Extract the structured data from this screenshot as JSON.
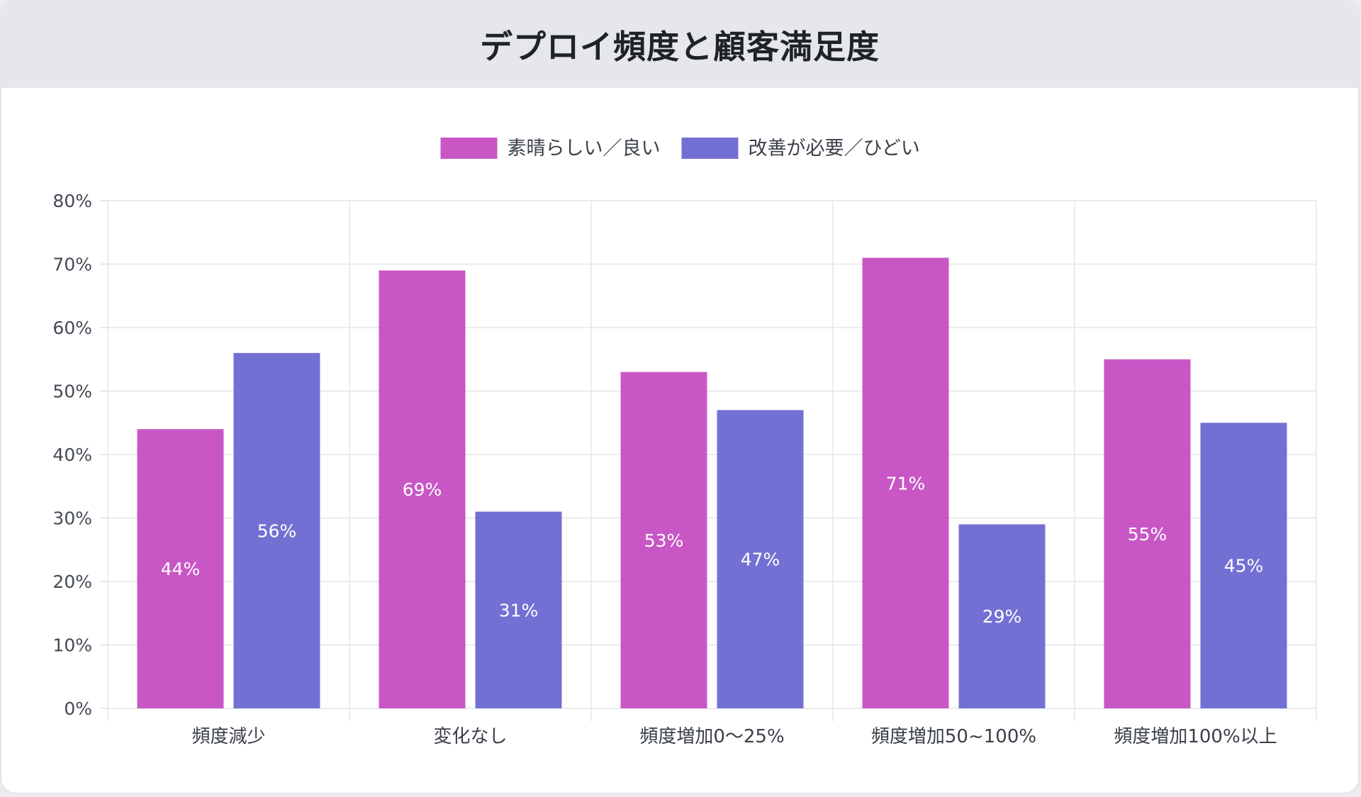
{
  "header": {
    "title": "デプロイ頻度と顧客満足度"
  },
  "chart_data": {
    "type": "bar",
    "title": "デプロイ頻度と顧客満足度",
    "xlabel": "",
    "ylabel": "",
    "categories": [
      "頻度減少",
      "変化なし",
      "頻度増加0〜25%",
      "頻度増加50~100%",
      "頻度増加100%以上"
    ],
    "series": [
      {
        "name": "素晴らしい／良い",
        "color": "#c857c5",
        "values": [
          44,
          69,
          53,
          71,
          55
        ]
      },
      {
        "name": "改善が必要／ひどい",
        "color": "#7370d4",
        "values": [
          56,
          31,
          47,
          29,
          45
        ]
      }
    ],
    "ylim": [
      0,
      80
    ],
    "yticks": [
      0,
      10,
      20,
      30,
      40,
      50,
      60,
      70,
      80
    ],
    "y_tick_format": "{}%",
    "data_label_format": "{}%",
    "grid": true,
    "legend_position": "top"
  }
}
